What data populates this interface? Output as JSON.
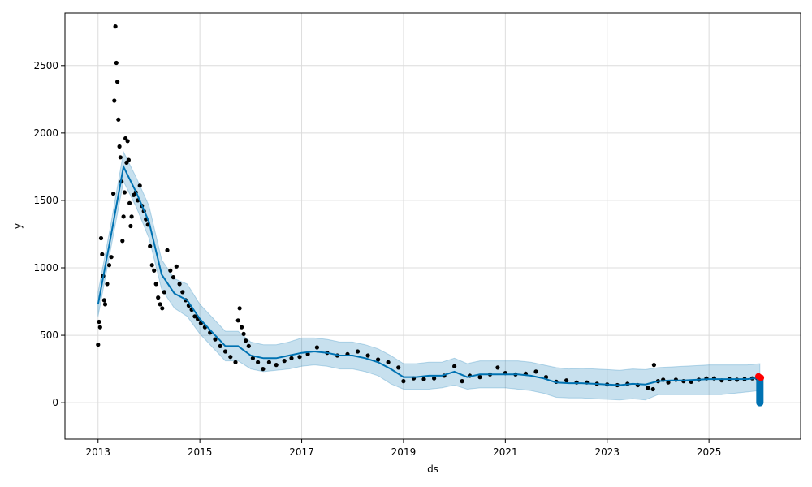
{
  "chart_data": {
    "type": "scatter",
    "title": "",
    "xlabel": "ds",
    "ylabel": "y",
    "x_range": [
      2012.35,
      2026.8
    ],
    "ylim": [
      -270,
      2890
    ],
    "x_ticks": [
      2013,
      2015,
      2017,
      2019,
      2021,
      2023,
      2025
    ],
    "x_tick_labels": [
      "2013",
      "2015",
      "2017",
      "2019",
      "2021",
      "2023",
      "2025"
    ],
    "y_ticks": [
      0,
      500,
      1000,
      1500,
      2000,
      2500
    ],
    "y_tick_labels": [
      "0",
      "500",
      "1000",
      "1500",
      "2000",
      "2500"
    ],
    "grid": true,
    "legend": "none",
    "colors": {
      "observed": "#000000",
      "forecast_line": "#0072B2",
      "uncertainty_band": "#0072B2",
      "highlight": "#ff0000"
    },
    "forecast": {
      "x": [
        2013.0,
        2013.25,
        2013.5,
        2013.75,
        2014.0,
        2014.25,
        2014.5,
        2014.75,
        2015.0,
        2015.25,
        2015.5,
        2015.75,
        2016.0,
        2016.25,
        2016.5,
        2016.75,
        2017.0,
        2017.25,
        2017.5,
        2017.75,
        2018.0,
        2018.25,
        2018.5,
        2018.75,
        2019.0,
        2019.25,
        2019.5,
        2019.75,
        2020.0,
        2020.25,
        2020.5,
        2020.75,
        2021.0,
        2021.25,
        2021.5,
        2021.75,
        2022.0,
        2022.25,
        2022.5,
        2022.75,
        2023.0,
        2023.25,
        2023.5,
        2023.75,
        2024.0,
        2024.25,
        2024.5,
        2024.75,
        2025.0,
        2025.25,
        2025.5,
        2025.75,
        2026.0
      ],
      "yhat": [
        730,
        1230,
        1750,
        1560,
        1340,
        950,
        810,
        760,
        620,
        520,
        420,
        420,
        350,
        330,
        330,
        350,
        370,
        380,
        370,
        350,
        350,
        330,
        300,
        250,
        190,
        190,
        200,
        200,
        230,
        190,
        210,
        210,
        210,
        210,
        200,
        180,
        150,
        145,
        145,
        140,
        135,
        130,
        140,
        135,
        160,
        165,
        165,
        170,
        175,
        175,
        175,
        175,
        185
      ],
      "yhat_lower": [
        640,
        1140,
        1640,
        1450,
        1220,
        840,
        700,
        640,
        510,
        410,
        310,
        310,
        250,
        230,
        240,
        250,
        270,
        280,
        270,
        250,
        250,
        230,
        200,
        140,
        100,
        100,
        100,
        110,
        130,
        100,
        110,
        110,
        110,
        100,
        90,
        70,
        40,
        35,
        35,
        30,
        25,
        20,
        30,
        20,
        60,
        60,
        60,
        60,
        60,
        60,
        70,
        80,
        90
      ],
      "yhat_upper": [
        820,
        1320,
        1860,
        1670,
        1460,
        1060,
        920,
        880,
        730,
        630,
        530,
        530,
        450,
        430,
        430,
        450,
        480,
        480,
        470,
        450,
        450,
        430,
        400,
        350,
        290,
        290,
        300,
        300,
        330,
        290,
        310,
        310,
        310,
        310,
        300,
        280,
        260,
        250,
        255,
        250,
        245,
        240,
        250,
        245,
        260,
        265,
        270,
        275,
        280,
        280,
        280,
        280,
        290
      ]
    },
    "observed": {
      "x": [
        2013.0,
        2013.02,
        2013.04,
        2013.06,
        2013.08,
        2013.1,
        2013.12,
        2013.14,
        2013.18,
        2013.22,
        2013.26,
        2013.3,
        2013.32,
        2013.34,
        2013.36,
        2013.38,
        2013.4,
        2013.42,
        2013.44,
        2013.46,
        2013.48,
        2013.5,
        2013.52,
        2013.54,
        2013.56,
        2013.58,
        2013.6,
        2013.62,
        2013.64,
        2013.66,
        2013.7,
        2013.74,
        2013.78,
        2013.82,
        2013.86,
        2013.9,
        2013.94,
        2013.98,
        2014.02,
        2014.06,
        2014.1,
        2014.14,
        2014.18,
        2014.22,
        2014.26,
        2014.3,
        2014.36,
        2014.42,
        2014.48,
        2014.54,
        2014.6,
        2014.66,
        2014.72,
        2014.78,
        2014.84,
        2014.9,
        2014.96,
        2015.02,
        2015.1,
        2015.2,
        2015.3,
        2015.4,
        2015.5,
        2015.6,
        2015.7,
        2015.75,
        2015.78,
        2015.82,
        2015.86,
        2015.9,
        2015.96,
        2016.04,
        2016.14,
        2016.24,
        2016.36,
        2016.5,
        2016.66,
        2016.8,
        2016.96,
        2017.12,
        2017.3,
        2017.5,
        2017.7,
        2017.9,
        2018.1,
        2018.3,
        2018.5,
        2018.7,
        2018.9,
        2019.0,
        2019.2,
        2019.4,
        2019.6,
        2019.8,
        2020.0,
        2020.15,
        2020.3,
        2020.5,
        2020.7,
        2020.85,
        2021.0,
        2021.2,
        2021.4,
        2021.6,
        2021.8,
        2022.0,
        2022.2,
        2022.4,
        2022.6,
        2022.8,
        2023.0,
        2023.2,
        2023.4,
        2023.6,
        2023.8,
        2023.9,
        2023.92,
        2024.0,
        2024.1,
        2024.2,
        2024.35,
        2024.5,
        2024.65,
        2024.8,
        2024.95,
        2025.1,
        2025.25,
        2025.4,
        2025.55,
        2025.7,
        2025.85,
        2025.95
      ],
      "y": [
        430,
        600,
        560,
        1220,
        1100,
        940,
        760,
        730,
        880,
        1020,
        1080,
        1550,
        2240,
        2790,
        2520,
        2380,
        2100,
        1900,
        1820,
        1640,
        1200,
        1380,
        1560,
        1960,
        1780,
        1940,
        1800,
        1480,
        1310,
        1380,
        1540,
        1560,
        1500,
        1610,
        1460,
        1420,
        1360,
        1320,
        1160,
        1020,
        980,
        880,
        780,
        730,
        700,
        820,
        1130,
        980,
        930,
        1010,
        880,
        820,
        760,
        720,
        690,
        640,
        620,
        590,
        560,
        520,
        470,
        420,
        380,
        340,
        300,
        610,
        700,
        560,
        510,
        460,
        420,
        330,
        300,
        250,
        300,
        280,
        310,
        330,
        340,
        360,
        410,
        370,
        350,
        360,
        380,
        350,
        320,
        300,
        260,
        160,
        180,
        175,
        180,
        200,
        270,
        160,
        200,
        190,
        210,
        260,
        220,
        210,
        215,
        230,
        190,
        155,
        165,
        150,
        150,
        140,
        135,
        130,
        140,
        130,
        110,
        100,
        280,
        160,
        170,
        150,
        170,
        160,
        155,
        170,
        180,
        180,
        165,
        175,
        170,
        175,
        180,
        180
      ]
    },
    "extra_forecast": {
      "x": [
        2026.0
      ],
      "y": [
        60
      ]
    },
    "highlight_points": {
      "x": [
        2025.97,
        2026.02
      ],
      "y": [
        195,
        185
      ]
    }
  }
}
